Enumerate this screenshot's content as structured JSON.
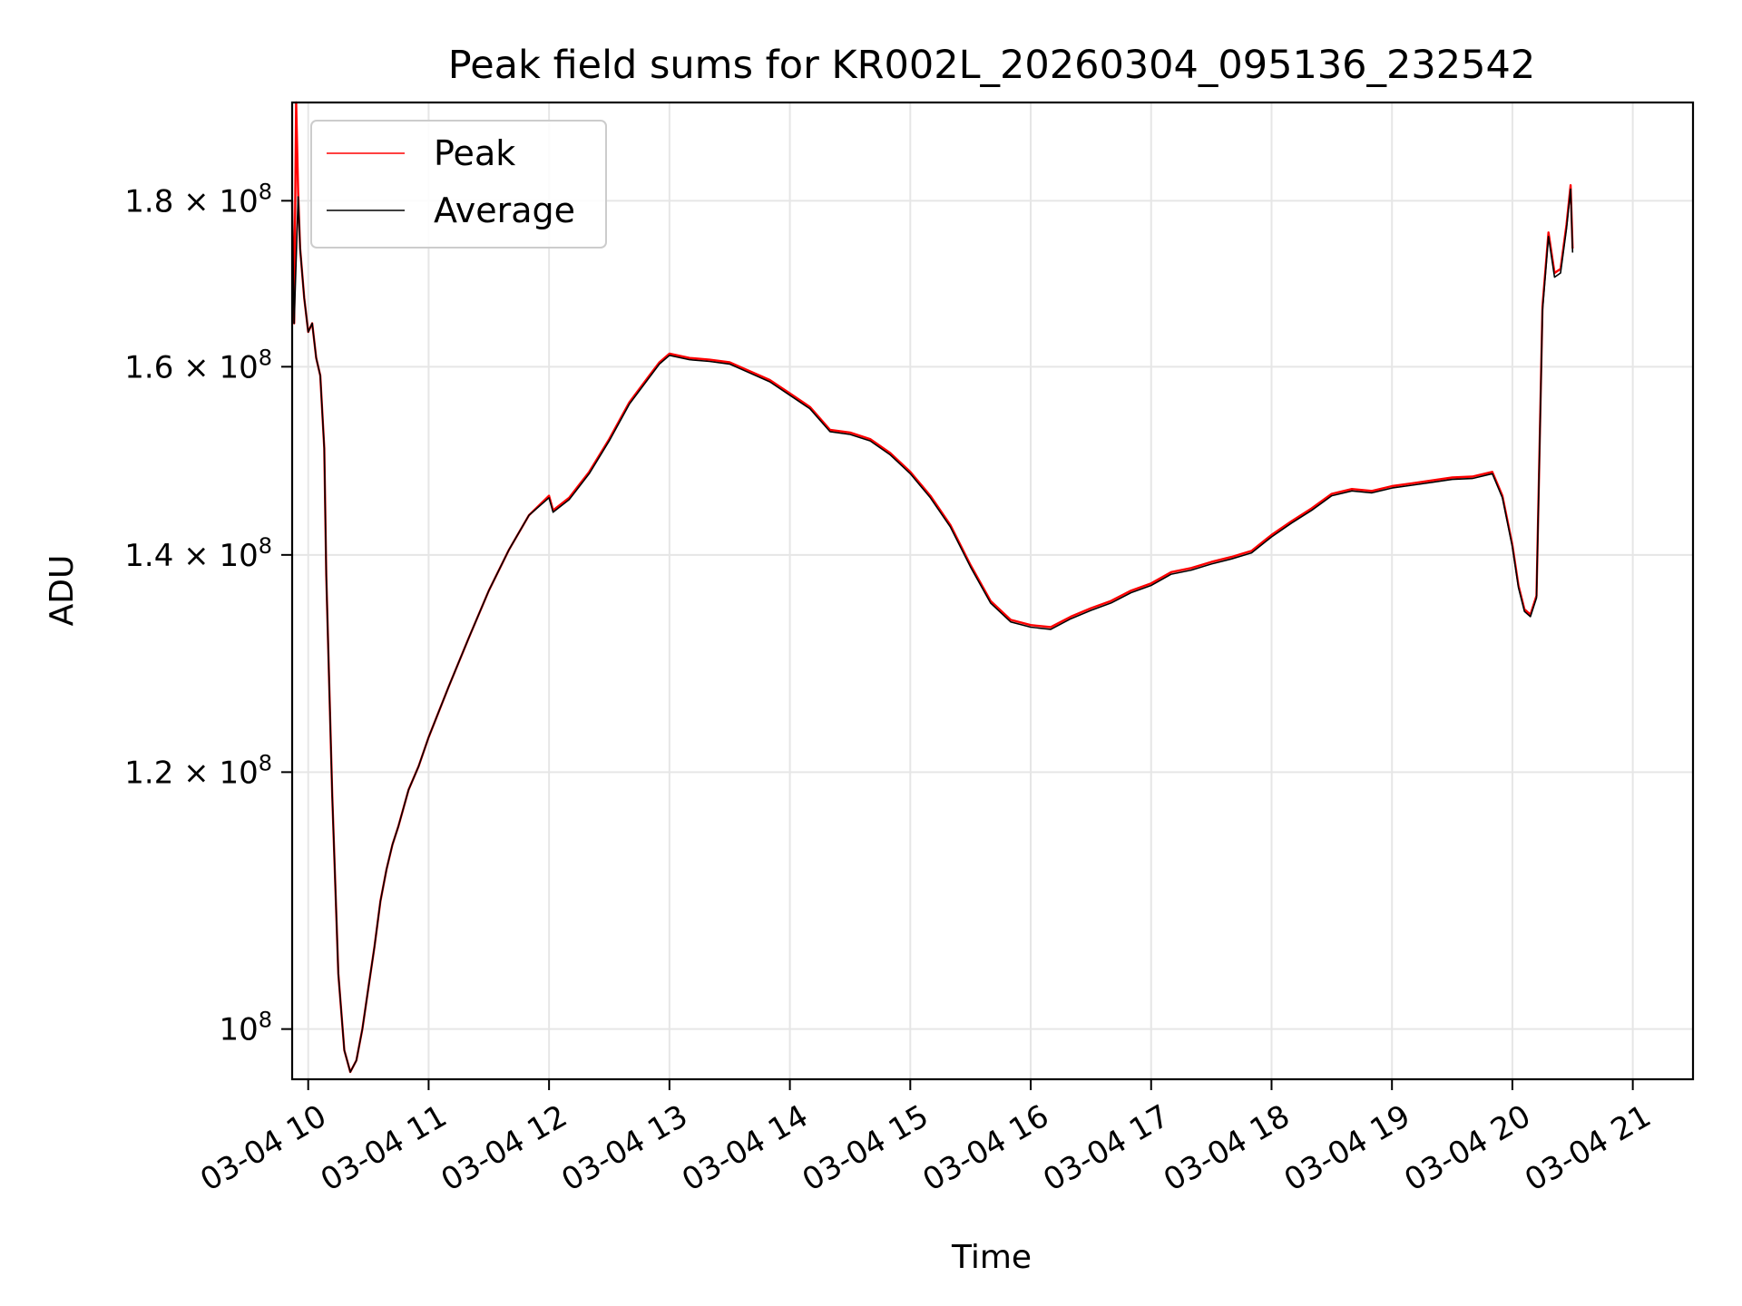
{
  "chart_data": {
    "type": "line",
    "title": "Peak field sums for KR002L_20260304_095136_232542",
    "xlabel": "Time",
    "ylabel": "ADU",
    "yscale": "log",
    "grid": true,
    "legend_position": "top-left",
    "xlim": [
      "03-04 09:52",
      "03-04 21:30"
    ],
    "ylim": [
      96500000,
      193000000
    ],
    "x_ticks": [
      "03-04 10",
      "03-04 11",
      "03-04 12",
      "03-04 13",
      "03-04 14",
      "03-04 15",
      "03-04 16",
      "03-04 17",
      "03-04 18",
      "03-04 19",
      "03-04 20",
      "03-04 21"
    ],
    "y_ticks": [
      {
        "value": 100000000,
        "mantissa": "",
        "base": "10",
        "exp": "8"
      },
      {
        "value": 120000000,
        "mantissa": "1.2 × ",
        "base": "10",
        "exp": "8"
      },
      {
        "value": 140000000,
        "mantissa": "1.4 × ",
        "base": "10",
        "exp": "8"
      },
      {
        "value": 160000000,
        "mantissa": "1.6 × ",
        "base": "10",
        "exp": "8"
      },
      {
        "value": 180000000,
        "mantissa": "1.8 × ",
        "base": "10",
        "exp": "8"
      }
    ],
    "series": [
      {
        "name": "Peak",
        "color": "#ff0000",
        "x": [
          "03-04 09:52",
          "03-04 09:53",
          "03-04 09:54",
          "03-04 09:55",
          "03-04 09:56",
          "03-04 09:58",
          "03-04 10:00",
          "03-04 10:02",
          "03-04 10:04",
          "03-04 10:06",
          "03-04 10:08",
          "03-04 10:09",
          "03-04 10:12",
          "03-04 10:15",
          "03-04 10:18",
          "03-04 10:21",
          "03-04 10:24",
          "03-04 10:27",
          "03-04 10:30",
          "03-04 10:33",
          "03-04 10:36",
          "03-04 10:39",
          "03-04 10:42",
          "03-04 10:45",
          "03-04 10:50",
          "03-04 10:55",
          "03-04 11:00",
          "03-04 11:10",
          "03-04 11:20",
          "03-04 11:30",
          "03-04 11:40",
          "03-04 11:50",
          "03-04 12:00",
          "03-04 12:02",
          "03-04 12:10",
          "03-04 12:20",
          "03-04 12:30",
          "03-04 12:40",
          "03-04 12:50",
          "03-04 12:55",
          "03-04 13:00",
          "03-04 13:10",
          "03-04 13:20",
          "03-04 13:30",
          "03-04 13:40",
          "03-04 13:50",
          "03-04 14:00",
          "03-04 14:10",
          "03-04 14:20",
          "03-04 14:30",
          "03-04 14:40",
          "03-04 14:50",
          "03-04 15:00",
          "03-04 15:10",
          "03-04 15:20",
          "03-04 15:30",
          "03-04 15:40",
          "03-04 15:50",
          "03-04 16:00",
          "03-04 16:10",
          "03-04 16:20",
          "03-04 16:30",
          "03-04 16:40",
          "03-04 16:50",
          "03-04 17:00",
          "03-04 17:10",
          "03-04 17:20",
          "03-04 17:30",
          "03-04 17:40",
          "03-04 17:50",
          "03-04 18:00",
          "03-04 18:10",
          "03-04 18:20",
          "03-04 18:30",
          "03-04 18:40",
          "03-04 18:50",
          "03-04 19:00",
          "03-04 19:10",
          "03-04 19:20",
          "03-04 19:30",
          "03-04 19:40",
          "03-04 19:50",
          "03-04 19:55",
          "03-04 20:00",
          "03-04 20:03",
          "03-04 20:06",
          "03-04 20:09",
          "03-04 20:12",
          "03-04 20:15",
          "03-04 20:18",
          "03-04 20:21",
          "03-04 20:24",
          "03-04 20:27",
          "03-04 20:29",
          "03-04 20:30"
        ],
        "values": [
          180000000,
          165000000,
          193000000,
          181000000,
          174000000,
          168000000,
          164000000,
          165000000,
          161000000,
          159000000,
          151000000,
          138000000,
          118000000,
          104000000,
          98500000,
          97000000,
          97800000,
          100000000,
          103000000,
          106000000,
          109500000,
          112000000,
          114000000,
          115500000,
          118500000,
          120500000,
          123000000,
          127500000,
          132000000,
          136500000,
          140500000,
          144000000,
          146000000,
          144500000,
          145800000,
          148500000,
          152000000,
          156000000,
          159000000,
          160500000,
          161500000,
          161000000,
          160800000,
          160500000,
          159500000,
          158500000,
          157000000,
          155500000,
          153000000,
          152700000,
          152000000,
          150500000,
          148500000,
          146000000,
          143000000,
          139000000,
          135500000,
          133700000,
          133200000,
          133000000,
          134000000,
          134800000,
          135500000,
          136500000,
          137200000,
          138300000,
          138700000,
          139300000,
          139800000,
          140400000,
          142000000,
          143400000,
          144700000,
          146200000,
          146700000,
          146500000,
          147000000,
          147300000,
          147600000,
          147900000,
          148000000,
          148500000,
          146000000,
          141000000,
          137000000,
          134700000,
          134200000,
          136000000,
          167000000,
          176000000,
          171000000,
          171500000,
          177000000,
          182000000,
          174000000
        ]
      },
      {
        "name": "Average",
        "color": "#000000",
        "x": [
          "03-04 09:52",
          "03-04 09:53",
          "03-04 09:55",
          "03-04 09:56",
          "03-04 09:58",
          "03-04 10:00",
          "03-04 10:02",
          "03-04 10:04",
          "03-04 10:06",
          "03-04 10:08",
          "03-04 10:09",
          "03-04 10:12",
          "03-04 10:15",
          "03-04 10:18",
          "03-04 10:21",
          "03-04 10:24",
          "03-04 10:27",
          "03-04 10:30",
          "03-04 10:33",
          "03-04 10:36",
          "03-04 10:39",
          "03-04 10:42",
          "03-04 10:45",
          "03-04 10:50",
          "03-04 10:55",
          "03-04 11:00",
          "03-04 11:10",
          "03-04 11:20",
          "03-04 11:30",
          "03-04 11:40",
          "03-04 11:50",
          "03-04 12:00",
          "03-04 12:02",
          "03-04 12:10",
          "03-04 12:20",
          "03-04 12:30",
          "03-04 12:40",
          "03-04 12:50",
          "03-04 12:55",
          "03-04 13:00",
          "03-04 13:10",
          "03-04 13:20",
          "03-04 13:30",
          "03-04 13:40",
          "03-04 13:50",
          "03-04 14:00",
          "03-04 14:10",
          "03-04 14:20",
          "03-04 14:30",
          "03-04 14:40",
          "03-04 14:50",
          "03-04 15:00",
          "03-04 15:10",
          "03-04 15:20",
          "03-04 15:30",
          "03-04 15:40",
          "03-04 15:50",
          "03-04 16:00",
          "03-04 16:10",
          "03-04 16:20",
          "03-04 16:30",
          "03-04 16:40",
          "03-04 16:50",
          "03-04 17:00",
          "03-04 17:10",
          "03-04 17:20",
          "03-04 17:30",
          "03-04 17:40",
          "03-04 17:50",
          "03-04 18:00",
          "03-04 18:10",
          "03-04 18:20",
          "03-04 18:30",
          "03-04 18:40",
          "03-04 18:50",
          "03-04 19:00",
          "03-04 19:10",
          "03-04 19:20",
          "03-04 19:30",
          "03-04 19:40",
          "03-04 19:50",
          "03-04 19:55",
          "03-04 20:00",
          "03-04 20:03",
          "03-04 20:06",
          "03-04 20:09",
          "03-04 20:12",
          "03-04 20:15",
          "03-04 20:18",
          "03-04 20:21",
          "03-04 20:24",
          "03-04 20:27",
          "03-04 20:29",
          "03-04 20:30"
        ],
        "values": [
          180000000,
          165000000,
          180500000,
          174000000,
          168000000,
          164000000,
          165000000,
          161000000,
          159000000,
          151000000,
          138000000,
          118000000,
          104000000,
          98500000,
          97000000,
          97800000,
          100000000,
          103000000,
          106000000,
          109500000,
          112000000,
          114000000,
          115500000,
          118500000,
          120500000,
          123000000,
          127500000,
          132000000,
          136500000,
          140500000,
          144000000,
          145800000,
          144300000,
          145600000,
          148300000,
          151800000,
          155800000,
          158800000,
          160300000,
          161300000,
          160800000,
          160600000,
          160300000,
          159300000,
          158300000,
          156800000,
          155300000,
          152800000,
          152500000,
          151800000,
          150300000,
          148300000,
          145800000,
          142800000,
          138800000,
          135300000,
          133500000,
          133000000,
          132800000,
          133800000,
          134600000,
          135300000,
          136300000,
          137000000,
          138100000,
          138500000,
          139100000,
          139600000,
          140200000,
          141800000,
          143200000,
          144500000,
          146000000,
          146500000,
          146300000,
          146800000,
          147100000,
          147400000,
          147700000,
          147800000,
          148300000,
          145800000,
          140800000,
          136800000,
          134500000,
          134000000,
          135800000,
          166500000,
          175500000,
          170500000,
          171000000,
          176500000,
          181500000,
          173500000
        ]
      }
    ]
  }
}
